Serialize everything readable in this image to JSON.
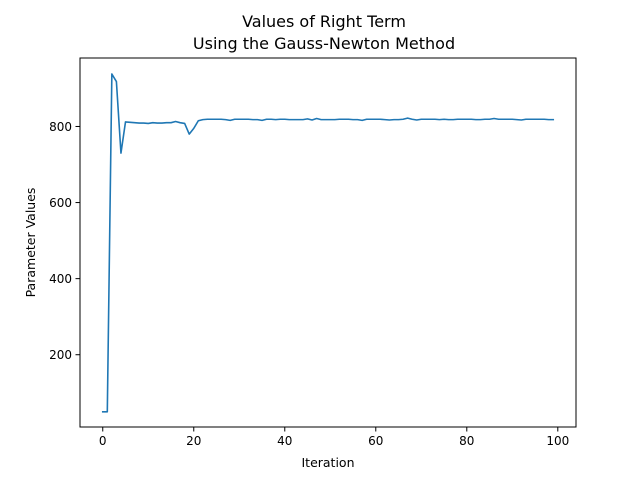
{
  "chart_data": {
    "type": "line",
    "title_line1": "Values of Right Term",
    "title_line2": "Using the Gauss-Newton Method",
    "xlabel": "Iteration",
    "ylabel": "Parameter Values",
    "xlim": [
      -5,
      104
    ],
    "ylim": [
      10,
      980
    ],
    "xticks": [
      0,
      20,
      40,
      60,
      80,
      100
    ],
    "yticks": [
      200,
      400,
      600,
      800
    ],
    "grid": false,
    "series": [
      {
        "color": "#1f77b4",
        "x": [
          0,
          1,
          2,
          3,
          4,
          5,
          6,
          7,
          8,
          9,
          10,
          11,
          12,
          13,
          14,
          15,
          16,
          17,
          18,
          19,
          20,
          21,
          22,
          23,
          24,
          25,
          26,
          27,
          28,
          29,
          30,
          31,
          32,
          33,
          34,
          35,
          36,
          37,
          38,
          39,
          40,
          41,
          42,
          43,
          44,
          45,
          46,
          47,
          48,
          49,
          50,
          51,
          52,
          53,
          54,
          55,
          56,
          57,
          58,
          59,
          60,
          61,
          62,
          63,
          64,
          65,
          66,
          67,
          68,
          69,
          70,
          71,
          72,
          73,
          74,
          75,
          76,
          77,
          78,
          79,
          80,
          81,
          82,
          83,
          84,
          85,
          86,
          87,
          88,
          89,
          90,
          91,
          92,
          93,
          94,
          95,
          96,
          97,
          98,
          99
        ],
        "values": [
          50,
          50,
          938,
          918,
          730,
          812,
          811,
          810,
          809,
          809,
          808,
          810,
          809,
          809,
          810,
          810,
          813,
          810,
          808,
          780,
          795,
          815,
          818,
          819,
          819,
          819,
          819,
          818,
          816,
          819,
          819,
          819,
          819,
          818,
          818,
          816,
          819,
          819,
          818,
          819,
          819,
          818,
          818,
          818,
          818,
          820,
          817,
          821,
          818,
          818,
          818,
          818,
          819,
          819,
          819,
          818,
          818,
          816,
          819,
          819,
          819,
          819,
          818,
          817,
          818,
          818,
          819,
          822,
          819,
          817,
          819,
          819,
          819,
          819,
          818,
          819,
          818,
          818,
          819,
          819,
          819,
          819,
          818,
          818,
          819,
          819,
          821,
          819,
          819,
          819,
          819,
          818,
          817,
          819,
          819,
          819,
          819,
          819,
          818,
          818
        ]
      }
    ]
  }
}
